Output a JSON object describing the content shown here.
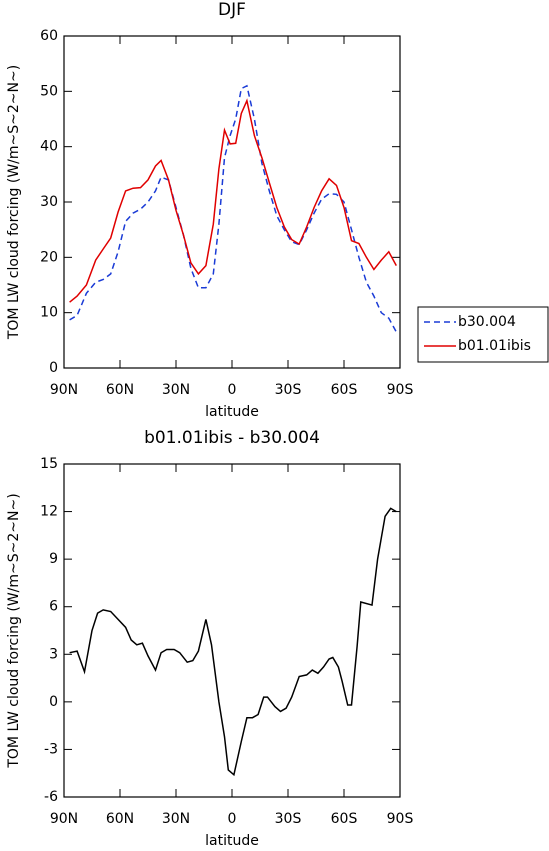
{
  "chart_data": [
    {
      "type": "line",
      "title": "DJF",
      "xlabel": "latitude",
      "ylabel": "TOM LW cloud forcing (W/m~S~2~N~)",
      "x": [
        87,
        83,
        78,
        73,
        69,
        65,
        61,
        57,
        53,
        49,
        45,
        41,
        38,
        34,
        30,
        26,
        22,
        18,
        14,
        10,
        7,
        4,
        1,
        -2,
        -5,
        -8,
        -12,
        -16,
        -20,
        -24,
        -28,
        -32,
        -36,
        -40,
        -44,
        -48,
        -52,
        -56,
        -60,
        -64,
        -68,
        -72,
        -76,
        -80,
        -84,
        -88
      ],
      "series": [
        {
          "name": "b30.004",
          "color": "#1a3bd6",
          "line_style": "dashed",
          "values": [
            8.7,
            9.5,
            13.5,
            15.5,
            16,
            17,
            21,
            26.5,
            28,
            28.7,
            30,
            32,
            34.5,
            34,
            29,
            24,
            18,
            14.5,
            14.5,
            17,
            26,
            38,
            42,
            45,
            50.5,
            51,
            45,
            37,
            32,
            27.5,
            25,
            22.8,
            22.3,
            25,
            28,
            30.5,
            31.5,
            31.4,
            30,
            25,
            20,
            15.5,
            13,
            10,
            9,
            6.5
          ]
        },
        {
          "name": "b01.01ibis",
          "color": "#e00000",
          "line_style": "solid",
          "values": [
            11.9,
            13,
            15,
            19.5,
            21.5,
            23.5,
            28.2,
            32,
            32.5,
            32.6,
            34,
            36.5,
            37.5,
            34,
            28.5,
            24,
            19,
            17,
            18.5,
            26,
            36,
            43,
            40.5,
            40.6,
            46,
            48.3,
            42,
            38,
            33.5,
            29,
            25.5,
            23.2,
            22.4,
            25.5,
            29,
            32,
            34.2,
            33,
            29,
            23,
            22.5,
            20,
            17.8,
            19.5,
            21,
            18.5
          ]
        }
      ],
      "xlim": [
        90,
        -90
      ],
      "xticks": [
        {
          "value": 90,
          "label": "90N"
        },
        {
          "value": 60,
          "label": "60N"
        },
        {
          "value": 30,
          "label": "30N"
        },
        0,
        {
          "value": -30,
          "label": "30S"
        },
        {
          "value": -60,
          "label": "60S"
        },
        {
          "value": -90,
          "label": "90S"
        }
      ],
      "ylim": [
        0,
        60
      ],
      "yticks": [
        0,
        10,
        20,
        30,
        40,
        50,
        60
      ],
      "legend": "right"
    },
    {
      "type": "line",
      "title": "b01.01ibis - b30.004",
      "xlabel": "latitude",
      "ylabel": "TOM LW cloud forcing (W/m~S~2~N~)",
      "x": [
        87,
        83,
        79,
        75,
        72,
        69,
        65,
        61,
        57,
        54,
        51,
        48,
        45,
        41,
        38,
        35,
        31,
        28,
        24,
        21,
        18,
        14,
        11,
        7,
        4,
        2,
        -1,
        -5,
        -8,
        -11,
        -14,
        -17,
        -19,
        -23,
        -26,
        -29,
        -32,
        -36,
        -40,
        -43,
        -46,
        -49,
        -52,
        -54,
        -57,
        -59,
        -62,
        -64,
        -67,
        -69,
        -75,
        -78,
        -82,
        -85,
        -88
      ],
      "series": [
        {
          "color": "#000000",
          "line_style": "solid",
          "values": [
            3.1,
            3.2,
            1.9,
            4.5,
            5.6,
            5.8,
            5.7,
            5.2,
            4.7,
            3.9,
            3.6,
            3.7,
            2.9,
            2,
            3.1,
            3.3,
            3.3,
            3.1,
            2.5,
            2.6,
            3.2,
            5.2,
            3.6,
            0,
            -2.2,
            -4.3,
            -4.6,
            -2.5,
            -1,
            -1,
            -0.8,
            0.3,
            0.3,
            -0.3,
            -0.6,
            -0.4,
            0.3,
            1.6,
            1.7,
            2,
            1.8,
            2.2,
            2.7,
            2.8,
            2.2,
            1.3,
            -0.2,
            -0.2,
            3.5,
            6.3,
            6.1,
            9,
            11.7,
            12.2,
            12
          ]
        }
      ],
      "xlim": [
        90,
        -90
      ],
      "xticks": [
        {
          "value": 90,
          "label": "90N"
        },
        {
          "value": 60,
          "label": "60N"
        },
        {
          "value": 30,
          "label": "30N"
        },
        0,
        {
          "value": -30,
          "label": "30S"
        },
        {
          "value": -60,
          "label": "60S"
        },
        {
          "value": -90,
          "label": "90S"
        }
      ],
      "ylim": [
        -6,
        15
      ],
      "yticks": [
        -6,
        -3,
        0,
        3,
        6,
        9,
        12,
        15
      ]
    }
  ]
}
